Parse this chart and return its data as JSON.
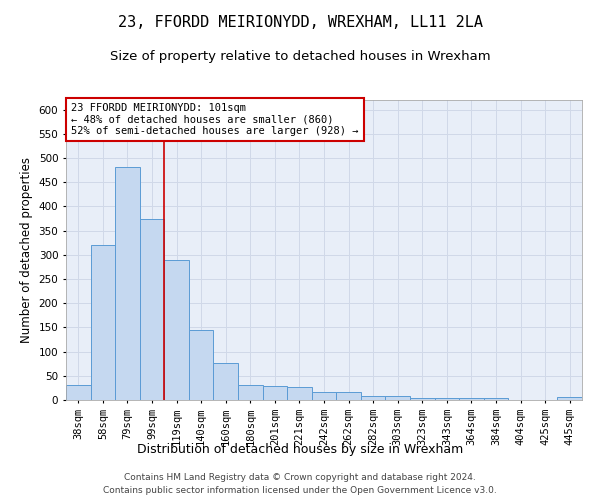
{
  "title1": "23, FFORDD MEIRIONYDD, WREXHAM, LL11 2LA",
  "title2": "Size of property relative to detached houses in Wrexham",
  "xlabel": "Distribution of detached houses by size in Wrexham",
  "ylabel": "Number of detached properties",
  "categories": [
    "38sqm",
    "58sqm",
    "79sqm",
    "99sqm",
    "119sqm",
    "140sqm",
    "160sqm",
    "180sqm",
    "201sqm",
    "221sqm",
    "242sqm",
    "262sqm",
    "282sqm",
    "303sqm",
    "323sqm",
    "343sqm",
    "364sqm",
    "384sqm",
    "404sqm",
    "425sqm",
    "445sqm"
  ],
  "values": [
    32,
    321,
    481,
    375,
    289,
    144,
    76,
    32,
    29,
    27,
    16,
    16,
    8,
    8,
    5,
    5,
    5,
    5,
    0,
    0,
    6
  ],
  "bar_color": "#c5d8f0",
  "bar_edge_color": "#5b9bd5",
  "grid_color": "#d0d8e8",
  "bg_color": "#e8eef8",
  "vline_x_pos": 3.5,
  "vline_color": "#cc0000",
  "annotation_text": "23 FFORDD MEIRIONYDD: 101sqm\n← 48% of detached houses are smaller (860)\n52% of semi-detached houses are larger (928) →",
  "annotation_box_color": "#cc0000",
  "footer": "Contains HM Land Registry data © Crown copyright and database right 2024.\nContains public sector information licensed under the Open Government Licence v3.0.",
  "ylim": [
    0,
    620
  ],
  "yticks": [
    0,
    50,
    100,
    150,
    200,
    250,
    300,
    350,
    400,
    450,
    500,
    550,
    600
  ],
  "title1_fontsize": 11,
  "title2_fontsize": 9.5,
  "xlabel_fontsize": 9,
  "ylabel_fontsize": 8.5,
  "tick_fontsize": 7.5,
  "annot_fontsize": 7.5,
  "footer_fontsize": 6.5
}
